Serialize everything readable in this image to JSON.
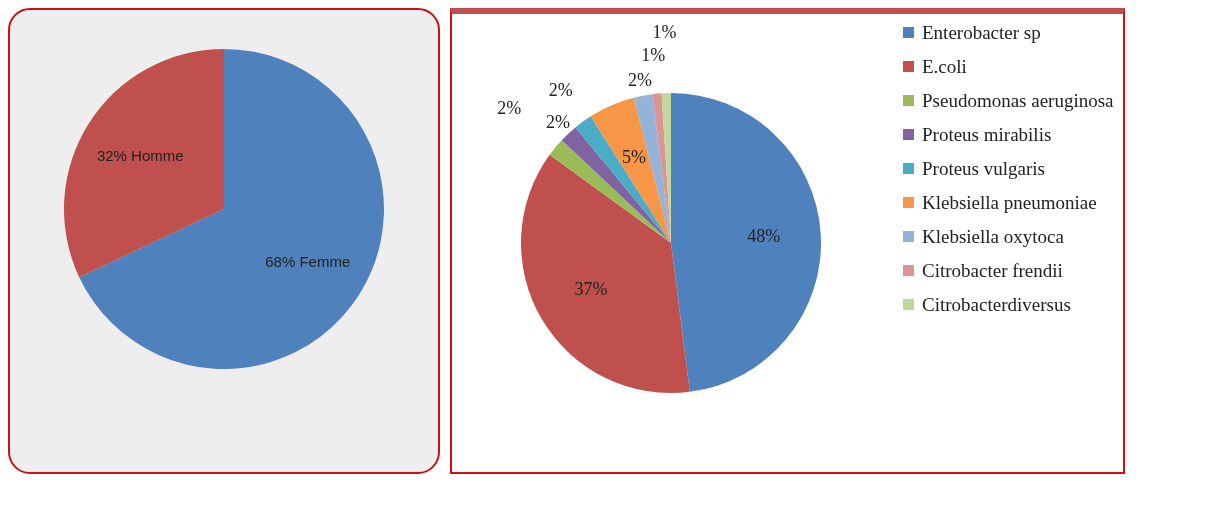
{
  "chart_data": [
    {
      "type": "pie",
      "categories": [
        "Femme",
        "Homme"
      ],
      "values": [
        68,
        32
      ],
      "colors": [
        "#4f81bd",
        "#c0504d"
      ],
      "value_labels": [
        "68%",
        "32%"
      ]
    },
    {
      "type": "pie",
      "categories": [
        "Enterobacter sp",
        "E.coli",
        "Pseudomonas aeruginosa",
        "Proteus mirabilis",
        "Proteus vulgaris",
        "Klebsiella pneumoniae",
        "Klebsiella oxytoca",
        "Citrobacter frendii",
        "Citrobacterdiversus"
      ],
      "values": [
        48,
        37,
        2,
        2,
        2,
        5,
        2,
        1,
        1
      ],
      "colors": [
        "#4f81bd",
        "#c0504d",
        "#9bbb59",
        "#8064a2",
        "#4bacc6",
        "#f79646",
        "#95b3d7",
        "#d99694",
        "#c3d69b"
      ],
      "value_labels": [
        "48%",
        "37%",
        "2%",
        "2%",
        "2%",
        "5%",
        "2%",
        "1%",
        "1%"
      ],
      "legend": "right"
    }
  ]
}
